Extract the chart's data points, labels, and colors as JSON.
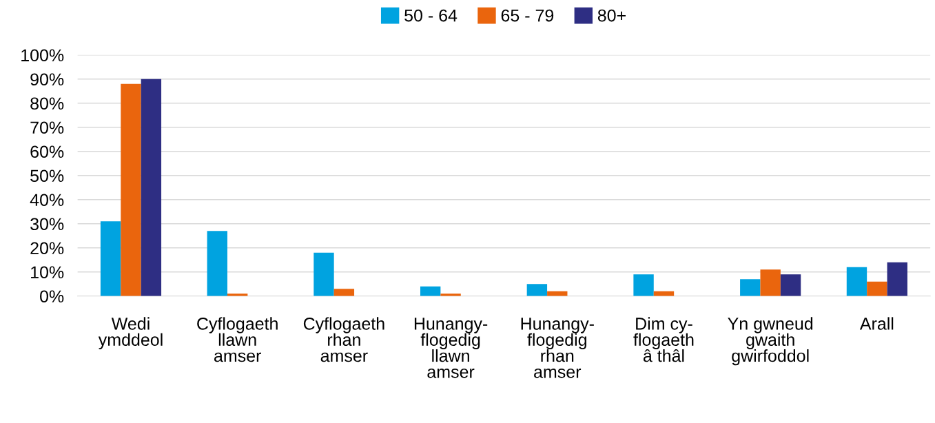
{
  "chart_data": {
    "type": "bar",
    "categories": [
      "Wedi\nymddeol",
      "Cyflogaeth\nllawn\namser",
      "Cyflogaeth\nrhan\namser",
      "Hunangy-\nflogedig\nllawn\namser",
      "Hunangy-\nflogedig\nrhan\namser",
      "Dim cy-\nflogaeth\nâ thâl",
      "Yn gwneud\ngwaith\ngwirfoddol",
      "Arall"
    ],
    "series": [
      {
        "name": "50 - 64",
        "color": "#00a3e0",
        "values": [
          31,
          27,
          18,
          4,
          5,
          9,
          7,
          12
        ]
      },
      {
        "name": "65 - 79",
        "color": "#ea650d",
        "values": [
          88,
          1,
          3,
          1,
          2,
          2,
          11,
          6
        ]
      },
      {
        "name": "80+",
        "color": "#2e2e83",
        "values": [
          90,
          0,
          0,
          0,
          0,
          0,
          9,
          14
        ]
      }
    ],
    "ylim": [
      0,
      100
    ],
    "yticks": [
      {
        "value": 0,
        "label": "0%"
      },
      {
        "value": 10,
        "label": "10%"
      },
      {
        "value": 20,
        "label": "20%"
      },
      {
        "value": 30,
        "label": "30%"
      },
      {
        "value": 40,
        "label": "40%"
      },
      {
        "value": 50,
        "label": "50%"
      },
      {
        "value": 60,
        "label": "60%"
      },
      {
        "value": 70,
        "label": "70%"
      },
      {
        "value": 80,
        "label": "80%"
      },
      {
        "value": 90,
        "label": "90%"
      },
      {
        "value": 100,
        "label": "100%"
      }
    ],
    "grid": "y",
    "legend": "top"
  }
}
